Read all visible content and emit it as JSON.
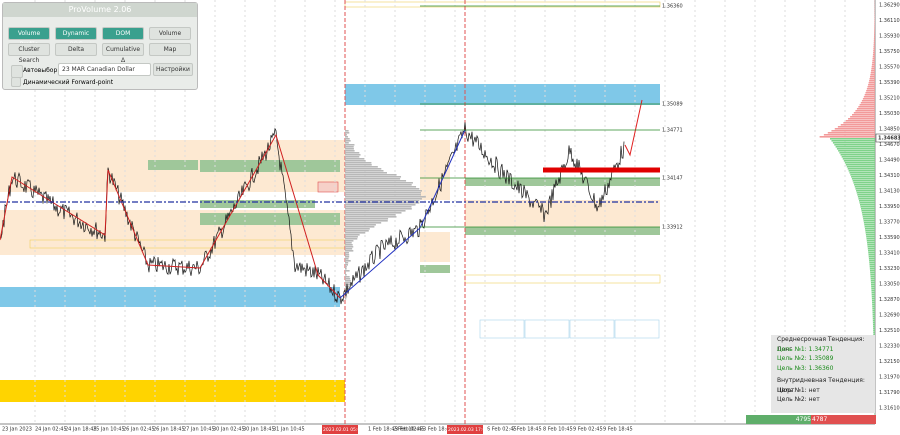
{
  "panel": {
    "title": "ProVolume 2.06",
    "buttons": [
      "Volume Profile",
      "Dynamic POC",
      "DOM",
      "Volume",
      "Cluster Search",
      "Delta",
      "Cumulative Δ",
      "Map"
    ],
    "auto": "Автовыбор",
    "symbol": "23 MAR Canadian Dollar",
    "settings": "Настройки",
    "forward": "Динамический Forward-point"
  },
  "price_axis": {
    "labels": [
      "1.36290",
      "1.36110",
      "1.35930",
      "1.35750",
      "1.35570",
      "1.35390",
      "1.35210",
      "1.35030",
      "1.34850",
      "1.34670",
      "1.34490",
      "1.34310",
      "1.34130",
      "1.33950",
      "1.33770",
      "1.33590",
      "1.33410",
      "1.33230",
      "1.33050",
      "1.32870",
      "1.32690",
      "1.32510",
      "1.32330",
      "1.32150",
      "1.31970",
      "1.31790",
      "1.31610"
    ],
    "current": "1.34683"
  },
  "levels": [
    "1.36360",
    "1.35089",
    "1.34771",
    "1.34147",
    "1.33912"
  ],
  "time_axis": {
    "labels": [
      "23 Jan 2023",
      "24 Jan 02:45",
      "24 Jan 18:45",
      "25 Jan 10:45",
      "26 Jan 02:45",
      "26 Jan 18:45",
      "27 Jan 10:45",
      "30 Jan 02:45",
      "30 Jan 18:45",
      "31 Jan 10:45",
      "1 Feb 18:45",
      "2 Feb 10:45",
      "3 Feb 02:45",
      "3 Feb 18:45",
      "6 Feb 02:45",
      "7 Feb 18:45",
      "8 Feb 10:45",
      "9 Feb 02:45",
      "9 Feb 18:45"
    ],
    "markers": [
      "2023.02.01 05:00",
      "2023.02.03 17:00"
    ]
  },
  "info_panel": {
    "lines": [
      "Среднесрочная Тенденция: Лонг",
      "Цель №1: 1.34771",
      "Цель №2: 1.35089",
      "Цель №3: 1.36360",
      "Внутридневная Тенденция: Шорт",
      "Цель №1: нет",
      "Цель №2: нет"
    ]
  },
  "bid_ask": [
    "4795",
    "4787"
  ]
}
